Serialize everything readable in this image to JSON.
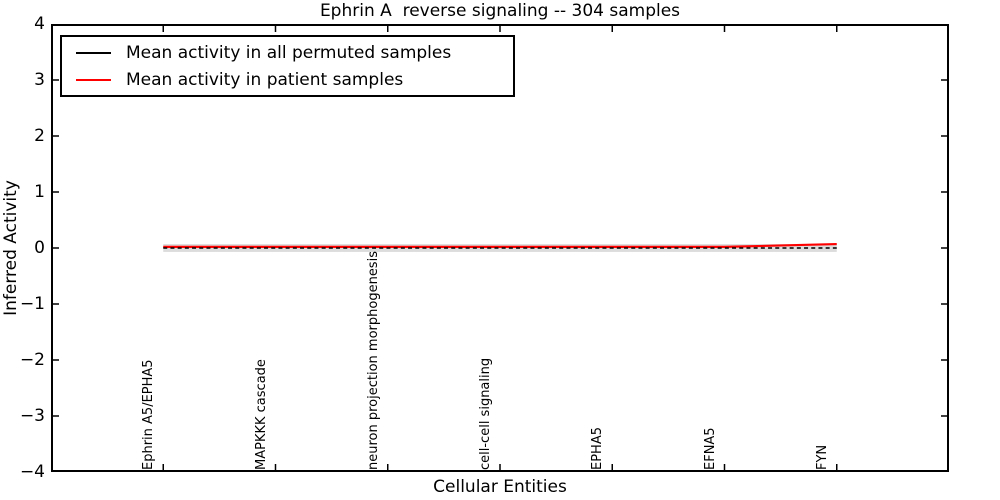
{
  "chart_data": {
    "type": "line",
    "title": "Ephrin A  reverse signaling -- 304 samples",
    "xlabel": "Cellular Entities",
    "ylabel": "Inferred Activity",
    "ylim": [
      -4,
      4
    ],
    "yticks": [
      4,
      3,
      2,
      1,
      0,
      -1,
      -2,
      -3,
      -4
    ],
    "grid": false,
    "legend_position": "upper left",
    "categories": [
      "Ephrin A5/EPHA5",
      "MAPKKK cascade",
      "neuron projection morphogenesis",
      "cell-cell signaling",
      "EPHA5",
      "EFNA5",
      "FYN"
    ],
    "series": [
      {
        "name": "Mean activity in all permuted samples",
        "color": "#000000",
        "style": "dashed",
        "values": [
          0.0,
          0.0,
          0.0,
          0.0,
          0.0,
          0.0,
          0.0
        ],
        "band_halfwidth": 0.07,
        "band_color": "#dcdcdc"
      },
      {
        "name": "Mean activity in patient samples",
        "color": "#ff0000",
        "style": "solid",
        "values": [
          0.02,
          0.02,
          0.02,
          0.02,
          0.02,
          0.02,
          0.07
        ]
      }
    ]
  }
}
